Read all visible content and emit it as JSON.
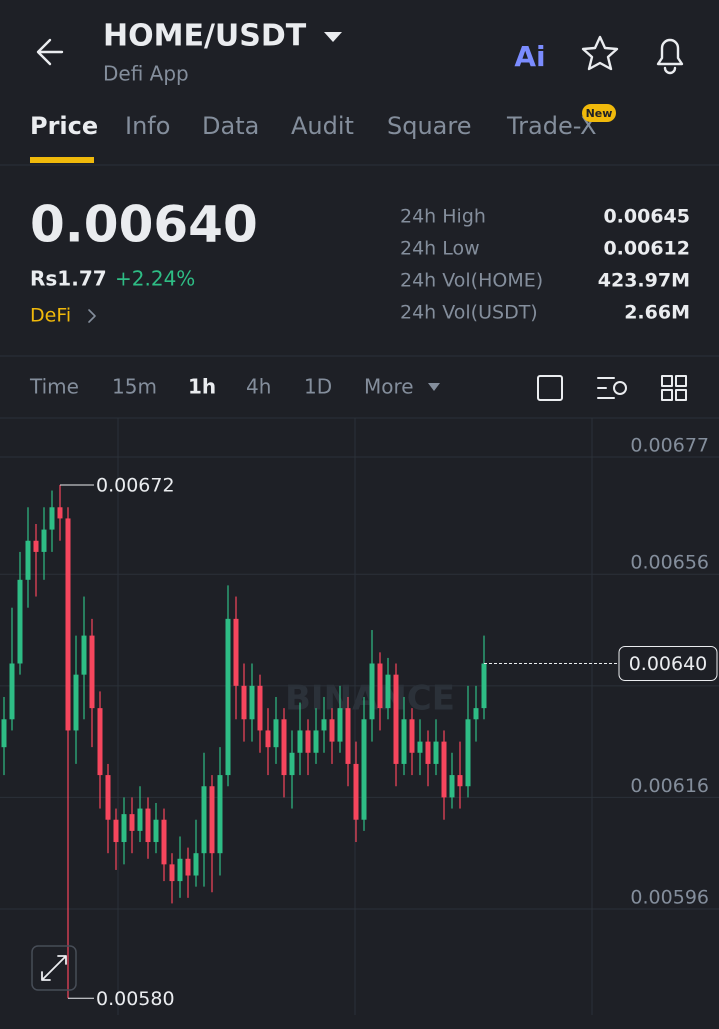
{
  "header": {
    "title": "HOME/USDT",
    "subtitle": "Defi App",
    "ai": "Ai"
  },
  "tabs": [
    "Price",
    "Info",
    "Data",
    "Audit",
    "Square",
    "Trade-X"
  ],
  "new_badge": "New",
  "price": {
    "last": "0.00640",
    "fiat": "Rs1.77",
    "change": "+2.24%",
    "tag": "DeFi"
  },
  "stats": [
    {
      "label": "24h High",
      "value": "0.00645"
    },
    {
      "label": "24h Low",
      "value": "0.00612"
    },
    {
      "label": "24h Vol(HOME)",
      "value": "423.97M"
    },
    {
      "label": "24h Vol(USDT)",
      "value": "2.66M"
    }
  ],
  "toolbar": [
    "Time",
    "15m",
    "1h",
    "4h",
    "1D",
    "More"
  ],
  "chart_data": {
    "type": "candlestick",
    "watermark": "BINANCE",
    "up_color": "#2ebd85",
    "down_color": "#f6465d",
    "open": [
      0.00625,
      0.0063,
      0.0064,
      0.00655,
      0.00662,
      0.0066,
      0.00664,
      0.00668,
      0.00666,
      0.00628,
      0.00638,
      0.00645,
      0.00632,
      0.0062,
      0.00612,
      0.00608,
      0.00613,
      0.0061,
      0.00614,
      0.00608,
      0.00612,
      0.00604,
      0.00601,
      0.00605,
      0.00602,
      0.00606,
      0.00618,
      0.00606,
      0.0062,
      0.00648,
      0.00636,
      0.0063,
      0.00636,
      0.00628,
      0.00625,
      0.0063,
      0.0062,
      0.00624,
      0.00628,
      0.00624,
      0.00628,
      0.0063,
      0.00626,
      0.00632,
      0.00622,
      0.00612,
      0.0063,
      0.0064,
      0.00632,
      0.00638,
      0.00622,
      0.0063,
      0.00624,
      0.00626,
      0.00622,
      0.00626,
      0.00616,
      0.0062,
      0.00618,
      0.0063,
      0.00632
    ],
    "high": [
      0.00634,
      0.0065,
      0.0066,
      0.00668,
      0.00665,
      0.00668,
      0.00671,
      0.00672,
      0.00668,
      0.00645,
      0.00652,
      0.00648,
      0.00635,
      0.00622,
      0.00614,
      0.00616,
      0.00616,
      0.00618,
      0.00616,
      0.00615,
      0.00614,
      0.00606,
      0.00609,
      0.00607,
      0.00612,
      0.00624,
      0.0062,
      0.00625,
      0.00654,
      0.00652,
      0.0064,
      0.0064,
      0.00638,
      0.00632,
      0.00634,
      0.00632,
      0.00628,
      0.00633,
      0.0063,
      0.00632,
      0.00634,
      0.00632,
      0.00636,
      0.00634,
      0.00626,
      0.00634,
      0.00646,
      0.00642,
      0.00641,
      0.0064,
      0.00634,
      0.00632,
      0.0063,
      0.00628,
      0.0063,
      0.00628,
      0.00624,
      0.00626,
      0.00636,
      0.00636,
      0.00645
    ],
    "low": [
      0.0062,
      0.00628,
      0.00638,
      0.0065,
      0.00652,
      0.00655,
      0.0066,
      0.00662,
      0.0058,
      0.00622,
      0.0063,
      0.00625,
      0.00614,
      0.00606,
      0.00603,
      0.00604,
      0.00606,
      0.00608,
      0.00605,
      0.00606,
      0.00601,
      0.00597,
      0.00598,
      0.00598,
      0.006,
      0.006,
      0.00599,
      0.00602,
      0.00618,
      0.0063,
      0.00626,
      0.00626,
      0.00624,
      0.0062,
      0.00622,
      0.00616,
      0.00614,
      0.0062,
      0.0062,
      0.00622,
      0.00624,
      0.00622,
      0.00624,
      0.00618,
      0.00608,
      0.0061,
      0.00626,
      0.00628,
      0.0063,
      0.00618,
      0.0062,
      0.0062,
      0.0062,
      0.00618,
      0.0062,
      0.00612,
      0.00614,
      0.00614,
      0.00616,
      0.00626,
      0.0063
    ],
    "close": [
      0.0063,
      0.0064,
      0.00655,
      0.00662,
      0.0066,
      0.00664,
      0.00668,
      0.00666,
      0.00628,
      0.00638,
      0.00645,
      0.00632,
      0.0062,
      0.00612,
      0.00608,
      0.00613,
      0.0061,
      0.00614,
      0.00608,
      0.00612,
      0.00604,
      0.00601,
      0.00605,
      0.00602,
      0.00606,
      0.00618,
      0.00606,
      0.0062,
      0.00648,
      0.00636,
      0.0063,
      0.00636,
      0.00628,
      0.00625,
      0.0063,
      0.0062,
      0.00624,
      0.00628,
      0.00624,
      0.00628,
      0.0063,
      0.00626,
      0.00632,
      0.00622,
      0.00612,
      0.0063,
      0.0064,
      0.00632,
      0.00638,
      0.00622,
      0.0063,
      0.00624,
      0.00626,
      0.00622,
      0.00626,
      0.00616,
      0.0062,
      0.00618,
      0.0063,
      0.00632,
      0.0064
    ],
    "ylim": [
      0.00577,
      0.00684
    ],
    "yticks": [
      0.00677,
      0.00656,
      0.00636,
      0.00616,
      0.00596
    ],
    "max_label": {
      "value": 0.00672,
      "label": "0.00672"
    },
    "min_label": {
      "value": 0.0058,
      "label": "0.00580"
    },
    "last_price": {
      "value": 0.0064,
      "label": "0.00640"
    }
  }
}
